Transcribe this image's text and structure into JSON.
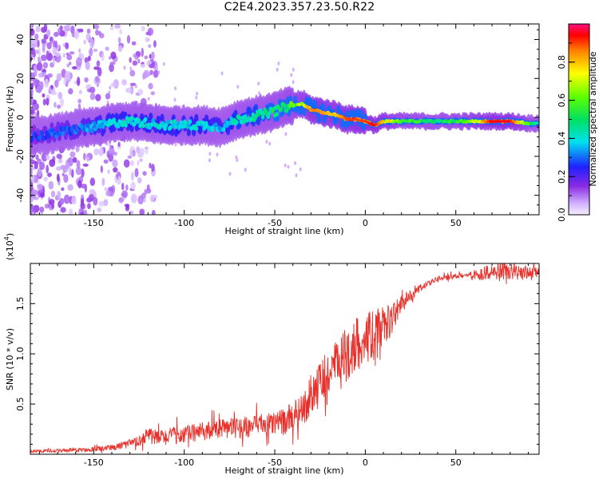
{
  "title": "C2E4.2023.357.23.50.R22",
  "chart_data": [
    {
      "type": "heatmap",
      "xlabel": "Height of straight line (km)",
      "ylabel": "Frequency (Hz)",
      "xlim": [
        -185,
        96
      ],
      "ylim": [
        -50,
        48
      ],
      "x_ticks": [
        -150,
        -100,
        -50,
        0,
        50
      ],
      "y_ticks": [
        -40,
        -20,
        0,
        20,
        40
      ],
      "colorbar": {
        "label": "Normalized spectral amplitude",
        "range": [
          0,
          1
        ],
        "ticks": [
          0.0,
          0.2,
          0.4,
          0.6,
          0.8
        ],
        "colormap": "rainbow (magenta-red at top, violet-white at bottom)"
      },
      "ridge": {
        "x": [
          -185,
          -170,
          -160,
          -150,
          -140,
          -130,
          -120,
          -110,
          -100,
          -90,
          -80,
          -70,
          -60,
          -50,
          -45,
          -40,
          -35,
          -30,
          -25,
          -20,
          -15,
          -10,
          -5,
          0,
          5,
          10,
          20,
          30,
          40,
          50,
          60,
          70,
          80,
          90,
          96
        ],
        "frequency": [
          -10,
          -8,
          -6,
          -5,
          -3,
          -2,
          -3,
          -4,
          -4,
          -4,
          -5,
          -1,
          1,
          3,
          5,
          6,
          7,
          4,
          3,
          2,
          1,
          -1,
          -1,
          -2,
          -4,
          -2,
          -2,
          -2,
          -2,
          -2,
          -2,
          -2,
          -2,
          -3,
          -3
        ],
        "amplitude": [
          0.25,
          0.3,
          0.3,
          0.35,
          0.4,
          0.4,
          0.4,
          0.4,
          0.4,
          0.4,
          0.35,
          0.45,
          0.45,
          0.5,
          0.5,
          0.6,
          0.7,
          0.85,
          0.85,
          0.8,
          0.8,
          0.9,
          0.9,
          0.9,
          0.95,
          0.8,
          0.6,
          0.55,
          0.5,
          0.55,
          0.7,
          0.95,
          0.95,
          0.6,
          0.4
        ]
      }
    },
    {
      "type": "line",
      "xlabel": "Height of straight line (km)",
      "ylabel": "SNR (10 * v/v)",
      "y_scale_label": "(x10",
      "y_scale_exponent": "4",
      "xlim": [
        -185,
        96
      ],
      "ylim": [
        0,
        19000
      ],
      "x_ticks": [
        -150,
        -100,
        -50,
        0,
        50
      ],
      "y_ticks": [
        5000,
        10000,
        15000
      ],
      "y_tick_labels": [
        "0.5",
        "1.0",
        "1.5"
      ],
      "line_color": "#e8302a",
      "envelope": {
        "x": [
          -185,
          -160,
          -140,
          -125,
          -121,
          -115,
          -100,
          -80,
          -60,
          -45,
          -35,
          -25,
          -15,
          -5,
          0,
          5,
          10,
          15,
          20,
          30,
          40,
          55,
          65,
          75,
          90,
          96
        ],
        "y": [
          300,
          400,
          600,
          1300,
          2000,
          1600,
          2000,
          2500,
          2800,
          3200,
          4500,
          7000,
          9000,
          11000,
          11500,
          12000,
          12700,
          13600,
          15000,
          16500,
          17500,
          17800,
          18000,
          18200,
          18000,
          18000
        ],
        "noise": [
          150,
          200,
          300,
          500,
          900,
          800,
          900,
          1000,
          1100,
          1300,
          1700,
          2300,
          2600,
          2800,
          2600,
          2400,
          2000,
          1500,
          900,
          400,
          250,
          250,
          700,
          1000,
          700,
          600
        ]
      }
    }
  ]
}
